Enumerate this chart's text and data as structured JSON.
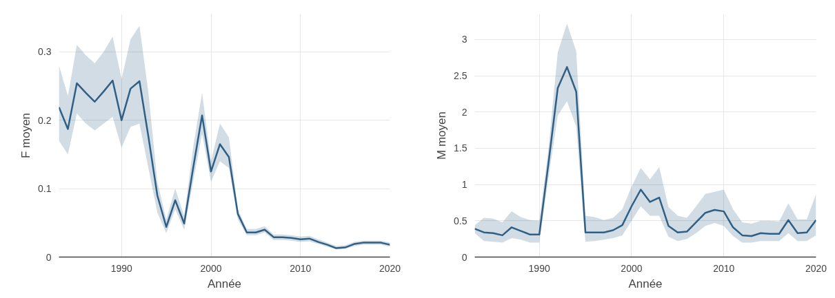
{
  "chart_data": [
    {
      "type": "line",
      "xlabel": "Année",
      "ylabel": "F moyen",
      "xlim": [
        1983,
        2020
      ],
      "xticks": [
        1990,
        2000,
        2010,
        2020
      ],
      "ylim": [
        0,
        0.355
      ],
      "yticks": [
        0,
        0.1,
        0.2,
        0.3
      ],
      "grid": true,
      "x": [
        1983,
        1984,
        1985,
        1986,
        1987,
        1988,
        1989,
        1990,
        1991,
        1992,
        1993,
        1994,
        1995,
        1996,
        1997,
        1998,
        1999,
        2000,
        2001,
        2002,
        2003,
        2004,
        2005,
        2006,
        2007,
        2008,
        2009,
        2010,
        2011,
        2012,
        2013,
        2014,
        2015,
        2016,
        2017,
        2018,
        2019,
        2020
      ],
      "series": [
        {
          "color": "#2f5f85",
          "values": [
            0.219,
            0.187,
            0.254,
            0.24,
            0.227,
            0.242,
            0.258,
            0.2,
            0.246,
            0.257,
            0.176,
            0.09,
            0.044,
            0.083,
            0.049,
            0.13,
            0.207,
            0.125,
            0.165,
            0.146,
            0.063,
            0.036,
            0.036,
            0.04,
            0.029,
            0.029,
            0.028,
            0.026,
            0.027,
            0.022,
            0.018,
            0.013,
            0.014,
            0.019,
            0.021,
            0.021,
            0.021,
            0.018
          ],
          "lower": [
            0.17,
            0.15,
            0.21,
            0.195,
            0.185,
            0.195,
            0.205,
            0.16,
            0.19,
            0.195,
            0.13,
            0.065,
            0.035,
            0.07,
            0.04,
            0.11,
            0.18,
            0.11,
            0.14,
            0.13,
            0.055,
            0.032,
            0.032,
            0.036,
            0.025,
            0.025,
            0.024,
            0.022,
            0.023,
            0.019,
            0.015,
            0.011,
            0.012,
            0.016,
            0.018,
            0.018,
            0.018,
            0.015
          ],
          "upper": [
            0.28,
            0.235,
            0.31,
            0.295,
            0.283,
            0.3,
            0.322,
            0.26,
            0.318,
            0.338,
            0.24,
            0.11,
            0.055,
            0.1,
            0.06,
            0.16,
            0.24,
            0.14,
            0.195,
            0.175,
            0.07,
            0.041,
            0.041,
            0.045,
            0.033,
            0.033,
            0.032,
            0.03,
            0.031,
            0.026,
            0.021,
            0.016,
            0.017,
            0.022,
            0.024,
            0.024,
            0.024,
            0.021
          ]
        }
      ]
    },
    {
      "type": "line",
      "xlabel": "Année",
      "ylabel": "M moyen",
      "xlim": [
        1983,
        2020
      ],
      "xticks": [
        1990,
        2000,
        2010,
        2020
      ],
      "ylim": [
        0,
        3.35
      ],
      "yticks": [
        0,
        0.5,
        1,
        1.5,
        2,
        2.5,
        3
      ],
      "grid": true,
      "x": [
        1983,
        1984,
        1985,
        1986,
        1987,
        1988,
        1989,
        1990,
        1991,
        1992,
        1993,
        1994,
        1995,
        1996,
        1997,
        1998,
        1999,
        2000,
        2001,
        2002,
        2003,
        2004,
        2005,
        2006,
        2007,
        2008,
        2009,
        2010,
        2011,
        2012,
        2013,
        2014,
        2015,
        2016,
        2017,
        2018,
        2019,
        2020
      ],
      "series": [
        {
          "color": "#2f5f85",
          "values": [
            0.39,
            0.34,
            0.33,
            0.3,
            0.41,
            0.36,
            0.31,
            0.31,
            1.3,
            2.33,
            2.62,
            2.28,
            0.34,
            0.34,
            0.34,
            0.37,
            0.44,
            0.7,
            0.93,
            0.76,
            0.82,
            0.43,
            0.34,
            0.35,
            0.48,
            0.61,
            0.65,
            0.63,
            0.41,
            0.3,
            0.29,
            0.33,
            0.32,
            0.32,
            0.51,
            0.33,
            0.34,
            0.51
          ],
          "lower": [
            0.33,
            0.22,
            0.21,
            0.2,
            0.26,
            0.24,
            0.2,
            0.2,
            1.1,
            1.95,
            2.15,
            1.8,
            0.21,
            0.22,
            0.24,
            0.26,
            0.3,
            0.5,
            0.7,
            0.57,
            0.57,
            0.28,
            0.22,
            0.25,
            0.33,
            0.43,
            0.47,
            0.43,
            0.29,
            0.2,
            0.2,
            0.22,
            0.22,
            0.22,
            0.33,
            0.22,
            0.22,
            0.3
          ],
          "upper": [
            0.44,
            0.54,
            0.53,
            0.48,
            0.63,
            0.55,
            0.51,
            0.5,
            1.5,
            2.82,
            3.22,
            2.84,
            0.57,
            0.55,
            0.51,
            0.54,
            0.66,
            0.97,
            1.23,
            1.07,
            1.24,
            0.69,
            0.57,
            0.54,
            0.7,
            0.87,
            0.9,
            0.93,
            0.66,
            0.48,
            0.46,
            0.5,
            0.5,
            0.49,
            0.74,
            0.52,
            0.52,
            0.87
          ]
        }
      ]
    }
  ]
}
